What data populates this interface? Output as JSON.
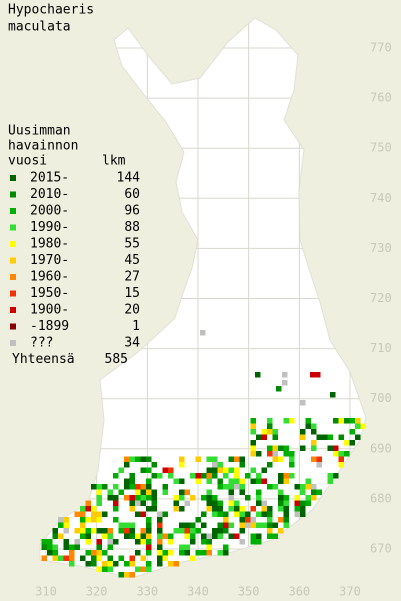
{
  "title": [
    "Hypochaeris",
    "maculata"
  ],
  "legend": {
    "header": [
      "Uusimman",
      "havainnon",
      "vuosi"
    ],
    "count_header": "lkm",
    "rows": [
      {
        "label": "2015-",
        "count": 144,
        "color": "#006400"
      },
      {
        "label": "2010-",
        "count": 60,
        "color": "#008a00"
      },
      {
        "label": "2000-",
        "count": 96,
        "color": "#00b000"
      },
      {
        "label": "1990-",
        "count": 88,
        "color": "#33dd33"
      },
      {
        "label": "1980-",
        "count": 55,
        "color": "#ffff00"
      },
      {
        "label": "1970-",
        "count": 45,
        "color": "#ffcc00"
      },
      {
        "label": "1960-",
        "count": 27,
        "color": "#ff8800"
      },
      {
        "label": "1950-",
        "count": 15,
        "color": "#ee3300"
      },
      {
        "label": "1900-",
        "count": 20,
        "color": "#cc0000"
      },
      {
        "label": "-1899",
        "count": 1,
        "color": "#880000"
      },
      {
        "label": "???",
        "count": 34,
        "color": "#c0c0c0"
      }
    ],
    "total_label": "Yhteensä",
    "total": 585
  },
  "map": {
    "yticks": [
      770,
      760,
      750,
      740,
      730,
      720,
      710,
      700,
      690,
      680,
      670
    ],
    "xticks": [
      310,
      320,
      330,
      340,
      350,
      360,
      370
    ]
  }
}
